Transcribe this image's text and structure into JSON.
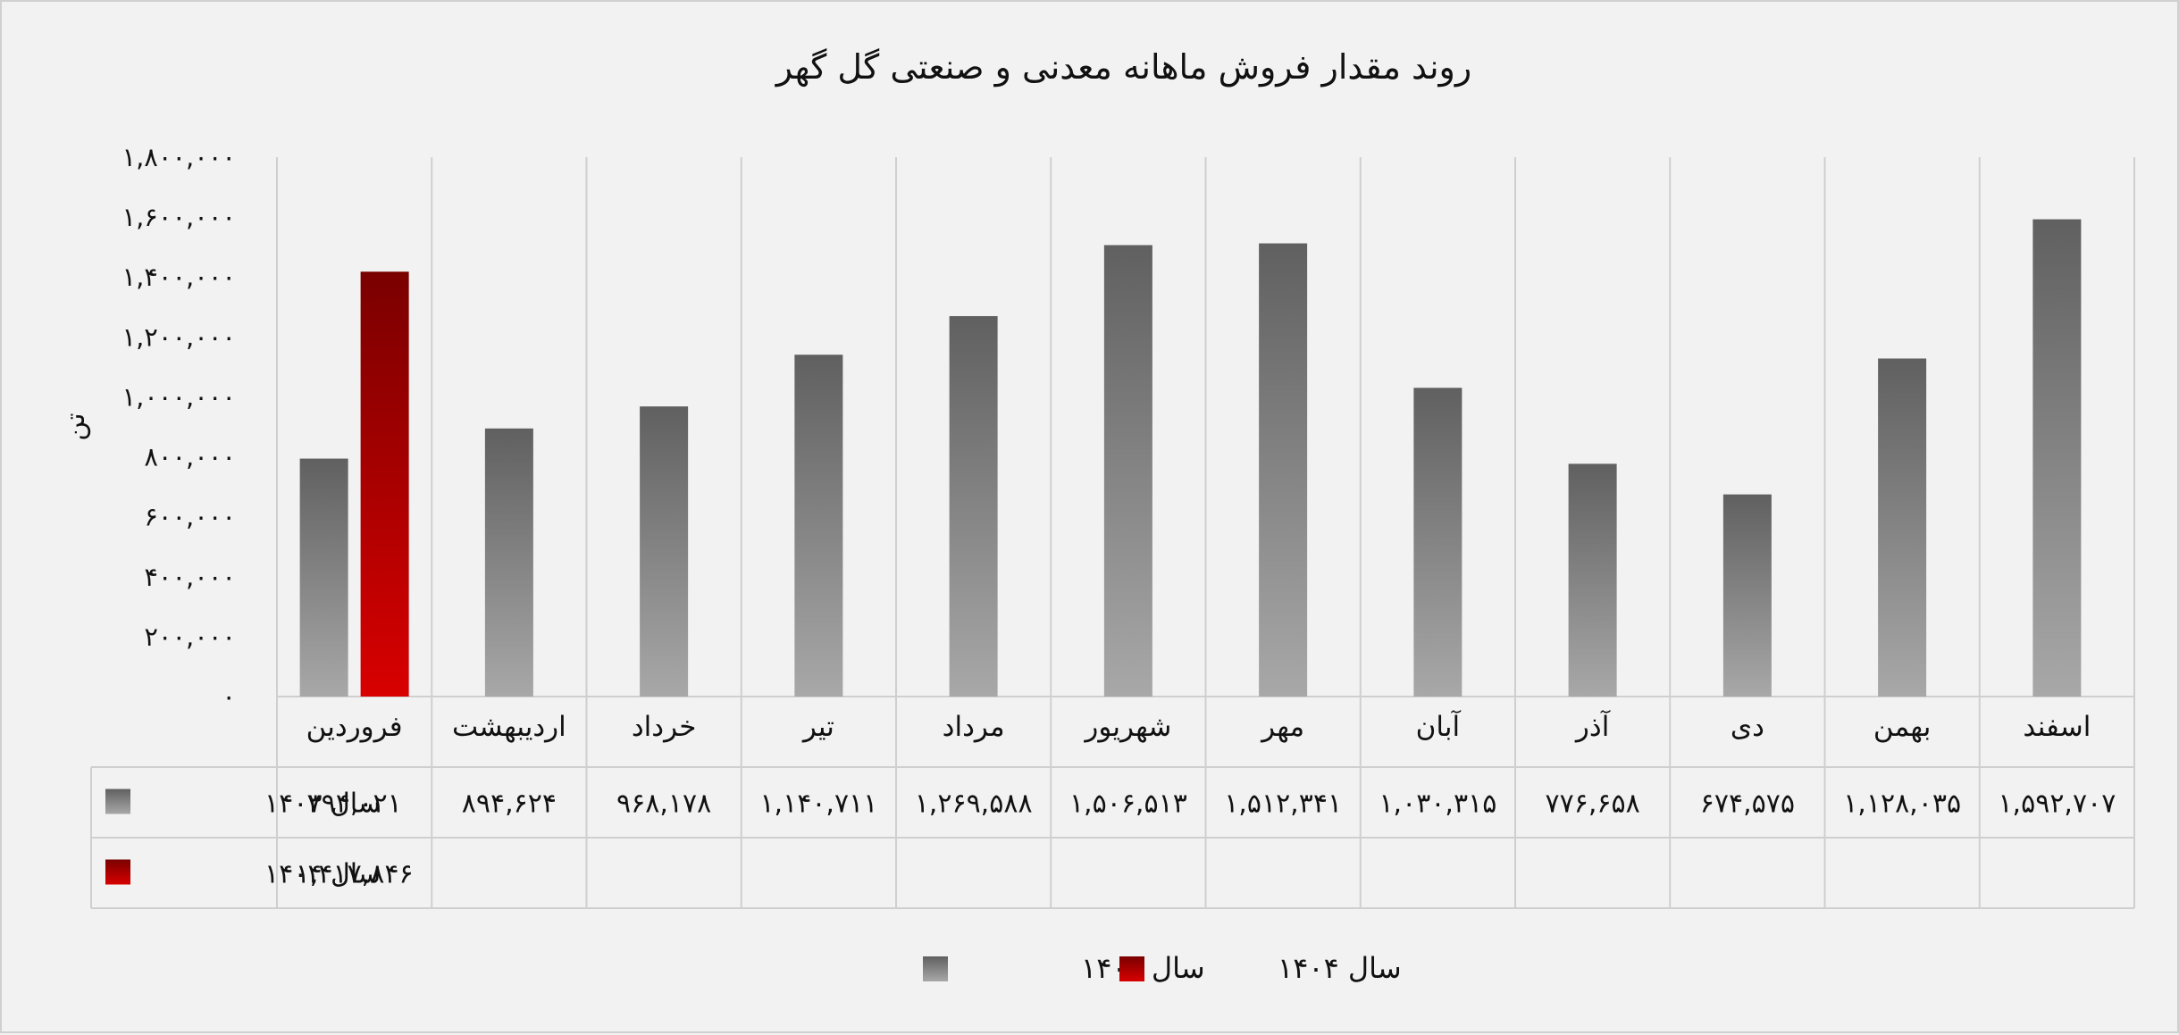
{
  "chart_data": {
    "type": "bar",
    "title": "روند مقدار فروش ماهانه معدنی و صنعتی گل گهر",
    "ylabel": "تن",
    "ylim": [
      0,
      1800000
    ],
    "yticks": [
      "۰",
      "۲۰۰,۰۰۰",
      "۴۰۰,۰۰۰",
      "۶۰۰,۰۰۰",
      "۸۰۰,۰۰۰",
      "۱,۰۰۰,۰۰۰",
      "۱,۲۰۰,۰۰۰",
      "۱,۴۰۰,۰۰۰",
      "۱,۶۰۰,۰۰۰",
      "۱,۸۰۰,۰۰۰"
    ],
    "categories": [
      "فروردین",
      "اردیبهشت",
      "خرداد",
      "تیر",
      "مرداد",
      "شهریور",
      "مهر",
      "آبان",
      "آذر",
      "دی",
      "بهمن",
      "اسفند"
    ],
    "grid": false,
    "legend_position": "bottom",
    "data_table": true,
    "series": [
      {
        "name": "سال ۱۴۰۳",
        "color": "#7f7f7f",
        "values": [
          794021,
          894624,
          968178,
          1140711,
          1269588,
          1506513,
          1512341,
          1030315,
          776658,
          674575,
          1128035,
          1592707
        ],
        "labels": [
          "۷۹۴,۰۲۱",
          "۸۹۴,۶۲۴",
          "۹۶۸,۱۷۸",
          "۱,۱۴۰,۷۱۱",
          "۱,۲۶۹,۵۸۸",
          "۱,۵۰۶,۵۱۳",
          "۱,۵۱۲,۳۴۱",
          "۱,۰۳۰,۳۱۵",
          "۷۷۶,۶۵۸",
          "۶۷۴,۵۷۵",
          "۱,۱۲۸,۰۳۵",
          "۱,۵۹۲,۷۰۷"
        ]
      },
      {
        "name": "سال ۱۴۰۴",
        "color": "#c00000",
        "values": [
          1417846,
          null,
          null,
          null,
          null,
          null,
          null,
          null,
          null,
          null,
          null,
          null
        ],
        "labels": [
          "۱,۴۱۷,۸۴۶",
          "",
          "",
          "",
          "",
          "",
          "",
          "",
          "",
          "",
          "",
          ""
        ]
      }
    ]
  }
}
